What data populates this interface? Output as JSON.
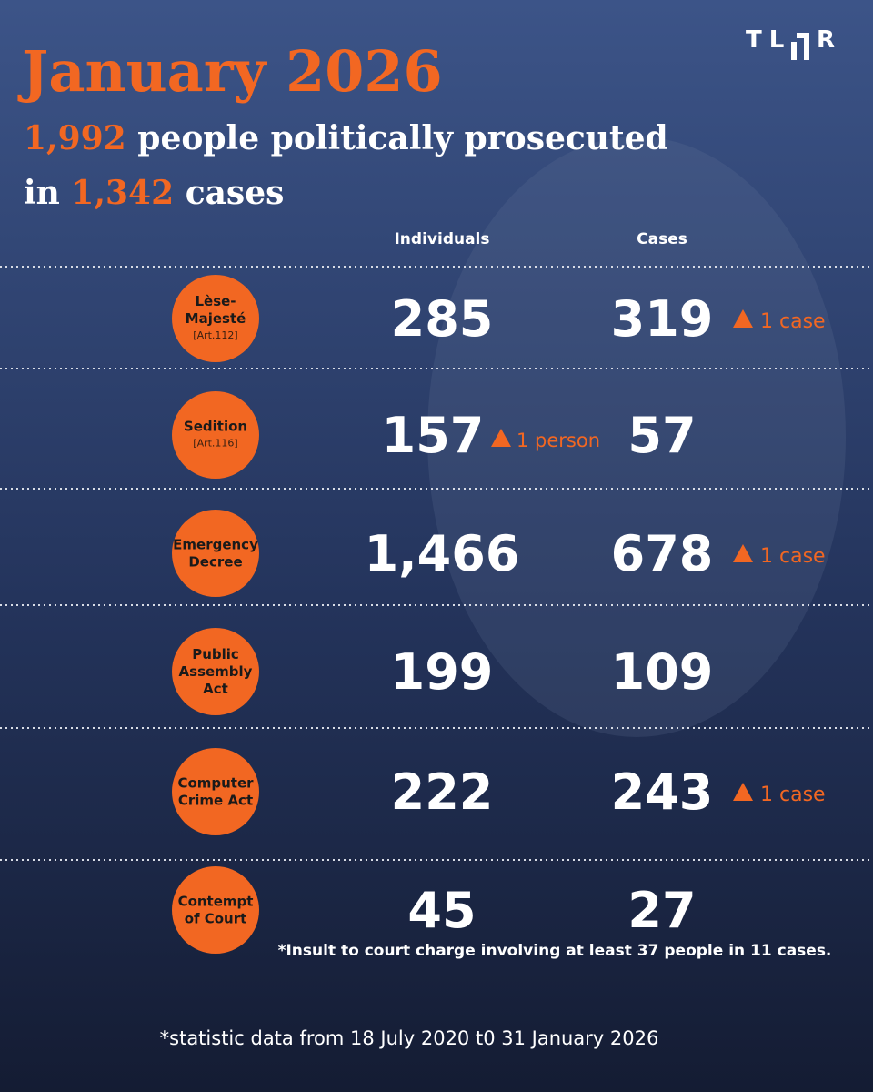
{
  "logo": {
    "left": "TL",
    "right": "R"
  },
  "title": "January 2026",
  "headline": {
    "people": "1,992",
    "line1": "people politically prosecuted",
    "line2_prefix": "in",
    "cases": "1,342",
    "line2_suffix": "cases"
  },
  "columns": [
    "Individuals",
    "Cases"
  ],
  "rows": [
    {
      "label": [
        "Lèse-",
        "Majesté"
      ],
      "article": "[Art.112]",
      "individuals": "285",
      "cases": "319",
      "cases_change": "1 case"
    },
    {
      "label": [
        "Sedition"
      ],
      "article": "[Art.116]",
      "individuals": "157",
      "individuals_change": "1 person",
      "cases": "57"
    },
    {
      "label": [
        "Emergency",
        "Decree"
      ],
      "individuals": "1,466",
      "cases": "678",
      "cases_change": "1 case"
    },
    {
      "label": [
        "Public",
        "Assembly",
        "Act"
      ],
      "individuals": "199",
      "cases": "109"
    },
    {
      "label": [
        "Computer",
        "Crime Act"
      ],
      "individuals": "222",
      "cases": "243",
      "cases_change": "1 case"
    },
    {
      "label": [
        "Contempt",
        "of Court"
      ],
      "individuals": "45",
      "cases": "27"
    }
  ],
  "note": "*Insult to court charge involving at least 37 people in 11 cases.",
  "footer": "*statistic data from 18 July 2020 t0 31 January 2026"
}
